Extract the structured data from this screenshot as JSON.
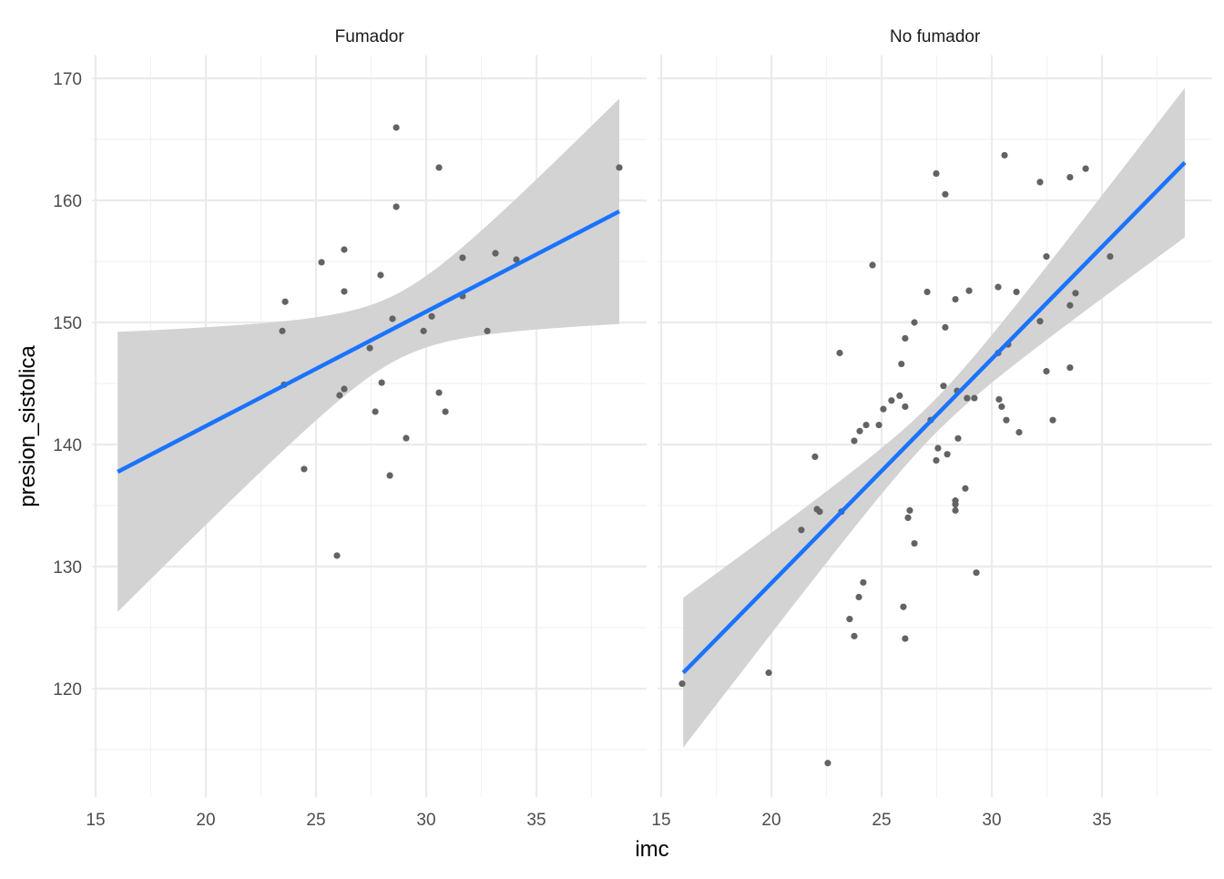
{
  "chart_data": {
    "type": "scatter",
    "xlabel": "imc",
    "ylabel": "presion_sistolica",
    "xlim": [
      14.85,
      40
    ],
    "ylim": [
      111.1,
      171.9
    ],
    "x_ticks": [
      "15",
      "20",
      "25",
      "30",
      "35"
    ],
    "y_ticks": [
      "120",
      "130",
      "140",
      "150",
      "160",
      "170"
    ],
    "grid": true,
    "colors": {
      "point": "#636363",
      "line": "#1a73ff",
      "ribbon": "#d3d3d3",
      "grid": "#ebebeb"
    },
    "facets": [
      {
        "label": "Fumador",
        "points": [
          [
            28.64,
            165.97
          ],
          [
            30.58,
            162.69
          ],
          [
            38.76,
            162.69
          ],
          [
            28.64,
            159.48
          ],
          [
            26.28,
            155.97
          ],
          [
            25.25,
            154.93
          ],
          [
            33.14,
            155.67
          ],
          [
            31.65,
            155.3
          ],
          [
            34.09,
            155.15
          ],
          [
            27.93,
            153.88
          ],
          [
            26.28,
            152.54
          ],
          [
            23.6,
            151.7
          ],
          [
            31.65,
            152.16
          ],
          [
            23.47,
            149.3
          ],
          [
            28.47,
            150.3
          ],
          [
            30.25,
            150.5
          ],
          [
            29.88,
            149.3
          ],
          [
            32.77,
            149.3
          ],
          [
            27.44,
            147.9
          ],
          [
            23.55,
            144.9
          ],
          [
            26.28,
            144.55
          ],
          [
            26.07,
            144.03
          ],
          [
            27.98,
            145.07
          ],
          [
            30.58,
            144.25
          ],
          [
            30.87,
            142.69
          ],
          [
            27.69,
            142.69
          ],
          [
            29.09,
            140.52
          ],
          [
            24.46,
            137.99
          ],
          [
            28.35,
            137.46
          ],
          [
            25.95,
            130.9
          ]
        ],
        "fit": {
          "x": [
            16.0,
            38.76
          ],
          "y": [
            137.76,
            159.1
          ]
        },
        "ci": {
          "center_x": 28.7,
          "se_at_center": 2.7,
          "spread": 0.77
        }
      },
      {
        "label": "No fumador",
        "points": [
          [
            30.58,
            163.7
          ],
          [
            27.48,
            162.2
          ],
          [
            34.26,
            162.6
          ],
          [
            33.55,
            161.9
          ],
          [
            27.89,
            160.5
          ],
          [
            32.19,
            161.5
          ],
          [
            32.48,
            155.4
          ],
          [
            35.37,
            155.4
          ],
          [
            24.59,
            154.7
          ],
          [
            27.07,
            152.5
          ],
          [
            28.35,
            151.9
          ],
          [
            28.97,
            152.6
          ],
          [
            30.29,
            152.9
          ],
          [
            31.12,
            152.5
          ],
          [
            33.8,
            152.4
          ],
          [
            33.55,
            151.4
          ],
          [
            26.49,
            150.0
          ],
          [
            27.89,
            149.6
          ],
          [
            32.19,
            150.1
          ],
          [
            26.07,
            148.7
          ],
          [
            23.1,
            147.5
          ],
          [
            30.74,
            148.2
          ],
          [
            30.29,
            147.5
          ],
          [
            25.9,
            146.6
          ],
          [
            32.48,
            146.0
          ],
          [
            33.55,
            146.3
          ],
          [
            27.81,
            144.8
          ],
          [
            28.43,
            144.4
          ],
          [
            25.82,
            144.0
          ],
          [
            25.45,
            143.6
          ],
          [
            29.21,
            143.8
          ],
          [
            28.88,
            143.8
          ],
          [
            30.33,
            143.7
          ],
          [
            30.45,
            143.1
          ],
          [
            26.07,
            143.1
          ],
          [
            25.08,
            142.9
          ],
          [
            27.23,
            142.0
          ],
          [
            30.66,
            142.0
          ],
          [
            32.77,
            142.0
          ],
          [
            24.3,
            141.6
          ],
          [
            24.88,
            141.6
          ],
          [
            24.01,
            141.1
          ],
          [
            31.24,
            141.0
          ],
          [
            23.76,
            140.3
          ],
          [
            28.47,
            140.5
          ],
          [
            27.56,
            139.7
          ],
          [
            27.98,
            139.2
          ],
          [
            21.98,
            139.0
          ],
          [
            27.48,
            138.7
          ],
          [
            28.8,
            136.4
          ],
          [
            28.35,
            135.4
          ],
          [
            28.35,
            135.1
          ],
          [
            28.35,
            134.6
          ],
          [
            26.28,
            134.6
          ],
          [
            22.07,
            134.7
          ],
          [
            22.19,
            134.5
          ],
          [
            23.18,
            134.5
          ],
          [
            26.2,
            134.0
          ],
          [
            21.36,
            133.0
          ],
          [
            26.49,
            131.9
          ],
          [
            29.3,
            129.5
          ],
          [
            24.17,
            128.7
          ],
          [
            23.97,
            127.5
          ],
          [
            25.99,
            126.7
          ],
          [
            23.55,
            125.7
          ],
          [
            23.76,
            124.3
          ],
          [
            26.07,
            124.1
          ],
          [
            15.95,
            120.4
          ],
          [
            19.88,
            121.3
          ],
          [
            22.56,
            113.9
          ]
        ],
        "fit": {
          "x": [
            16.0,
            38.76
          ],
          "y": [
            121.3,
            163.1
          ]
        },
        "ci": {
          "center_x": 27.4,
          "se_at_center": 1.4,
          "spread": 0.275
        }
      }
    ]
  }
}
